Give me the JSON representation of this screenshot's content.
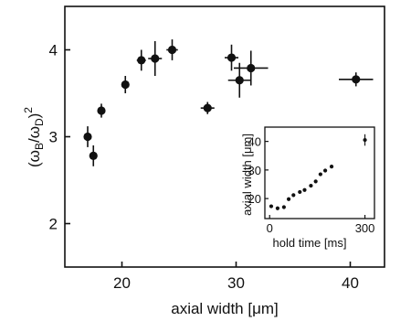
{
  "chart_data": [
    {
      "type": "scatter",
      "xlabel": "axial width [μm]",
      "ylabel_parts": {
        "open": "(ω",
        "sub1": "B",
        "slash": "/ω",
        "sub2": "D",
        "close": ")",
        "sup": "2"
      },
      "xlim": [
        15,
        43
      ],
      "ylim": [
        1.5,
        4.5
      ],
      "x_ticks": [
        20,
        30,
        40
      ],
      "y_ticks": [
        2,
        3,
        4
      ],
      "grid": false,
      "points": [
        {
          "x": 17.0,
          "y": 3.0,
          "xerr": 0.3,
          "yerr": 0.12
        },
        {
          "x": 17.5,
          "y": 2.78,
          "xerr": 0.3,
          "yerr": 0.12
        },
        {
          "x": 18.2,
          "y": 3.3,
          "xerr": 0.3,
          "yerr": 0.08
        },
        {
          "x": 20.3,
          "y": 3.6,
          "xerr": 0.3,
          "yerr": 0.1
        },
        {
          "x": 21.7,
          "y": 3.88,
          "xerr": 0.4,
          "yerr": 0.12
        },
        {
          "x": 22.9,
          "y": 3.9,
          "xerr": 0.6,
          "yerr": 0.2
        },
        {
          "x": 24.4,
          "y": 4.0,
          "xerr": 0.5,
          "yerr": 0.12
        },
        {
          "x": 27.5,
          "y": 3.33,
          "xerr": 0.6,
          "yerr": 0.07
        },
        {
          "x": 29.6,
          "y": 3.91,
          "xerr": 0.6,
          "yerr": 0.15
        },
        {
          "x": 30.3,
          "y": 3.65,
          "xerr": 1.0,
          "yerr": 0.2
        },
        {
          "x": 31.3,
          "y": 3.79,
          "xerr": 1.5,
          "yerr": 0.2
        },
        {
          "x": 40.5,
          "y": 3.66,
          "xerr": 1.5,
          "yerr": 0.08
        }
      ]
    },
    {
      "type": "scatter",
      "inset": true,
      "xlabel": "hold time [ms]",
      "ylabel": "axial width [μm]",
      "xlim": [
        -15,
        330
      ],
      "ylim": [
        13,
        45
      ],
      "x_ticks": [
        0,
        300
      ],
      "y_ticks": [
        20,
        30,
        40
      ],
      "grid": false,
      "points": [
        {
          "x": 5,
          "y": 17.3
        },
        {
          "x": 25,
          "y": 16.6
        },
        {
          "x": 45,
          "y": 17.0
        },
        {
          "x": 60,
          "y": 19.8
        },
        {
          "x": 75,
          "y": 21.2
        },
        {
          "x": 95,
          "y": 22.3
        },
        {
          "x": 110,
          "y": 23.0
        },
        {
          "x": 130,
          "y": 24.5
        },
        {
          "x": 145,
          "y": 26.0
        },
        {
          "x": 160,
          "y": 28.5
        },
        {
          "x": 175,
          "y": 29.8
        },
        {
          "x": 195,
          "y": 31.2
        },
        {
          "x": 300,
          "y": 40.5,
          "yerr": 2.0
        }
      ]
    }
  ]
}
